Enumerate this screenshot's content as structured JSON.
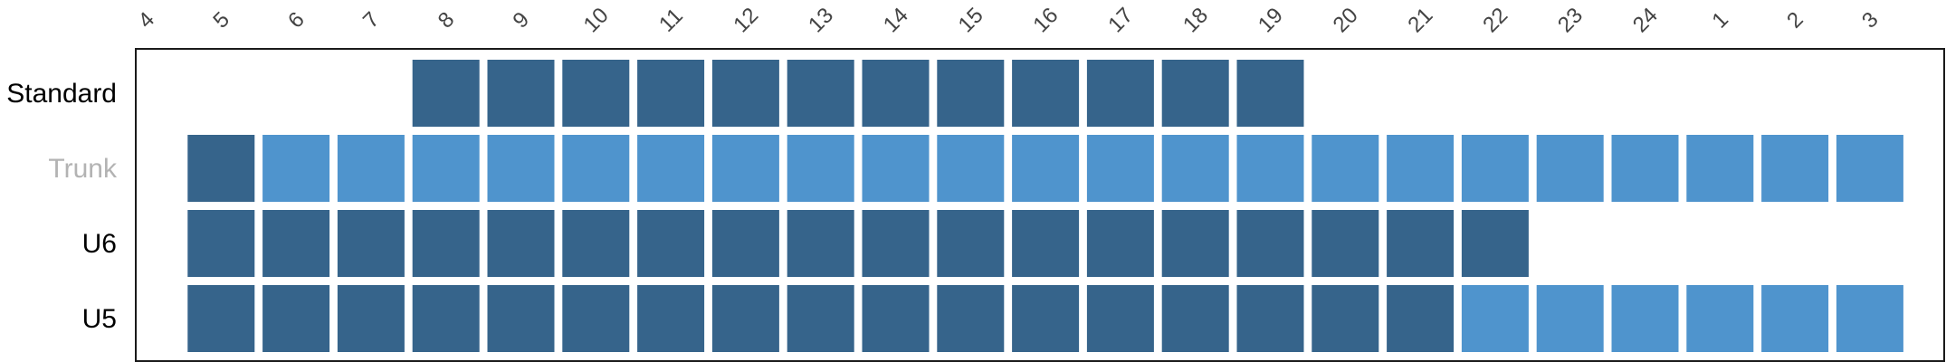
{
  "chart_data": {
    "type": "heatmap",
    "title": "",
    "xlabel": "",
    "ylabel": "",
    "categories": [
      "4",
      "5",
      "6",
      "7",
      "8",
      "9",
      "10",
      "11",
      "12",
      "13",
      "14",
      "15",
      "16",
      "17",
      "18",
      "19",
      "20",
      "21",
      "22",
      "23",
      "24",
      "1",
      "2",
      "3"
    ],
    "rows": [
      {
        "label": "Standard",
        "label_color": "#000000",
        "cells": [
          null,
          null,
          null,
          null,
          "dark",
          "dark",
          "dark",
          "dark",
          "dark",
          "dark",
          "dark",
          "dark",
          "dark",
          "dark",
          "dark",
          "dark",
          null,
          null,
          null,
          null,
          null,
          null,
          null,
          null
        ]
      },
      {
        "label": "Trunk",
        "label_color": "#b3b3b3",
        "cells": [
          null,
          "dark",
          "light",
          "light",
          "light",
          "light",
          "light",
          "light",
          "light",
          "light",
          "light",
          "light",
          "light",
          "light",
          "light",
          "light",
          "light",
          "light",
          "light",
          "light",
          "light",
          "light",
          "light",
          "light"
        ]
      },
      {
        "label": "U6",
        "label_color": "#000000",
        "cells": [
          null,
          "dark",
          "dark",
          "dark",
          "dark",
          "dark",
          "dark",
          "dark",
          "dark",
          "dark",
          "dark",
          "dark",
          "dark",
          "dark",
          "dark",
          "dark",
          "dark",
          "dark",
          "dark",
          null,
          null,
          null,
          null,
          null
        ]
      },
      {
        "label": "U5",
        "label_color": "#000000",
        "cells": [
          null,
          "dark",
          "dark",
          "dark",
          "dark",
          "dark",
          "dark",
          "dark",
          "dark",
          "dark",
          "dark",
          "dark",
          "dark",
          "dark",
          "dark",
          "dark",
          "dark",
          "dark",
          "light",
          "light",
          "light",
          "light",
          "light",
          "light"
        ]
      }
    ],
    "colors": {
      "dark": "#36648b",
      "light": "#4f94cd",
      "frame": "#1a1a1a",
      "tick_text": "#444444"
    },
    "grid": false,
    "legend": "none"
  }
}
